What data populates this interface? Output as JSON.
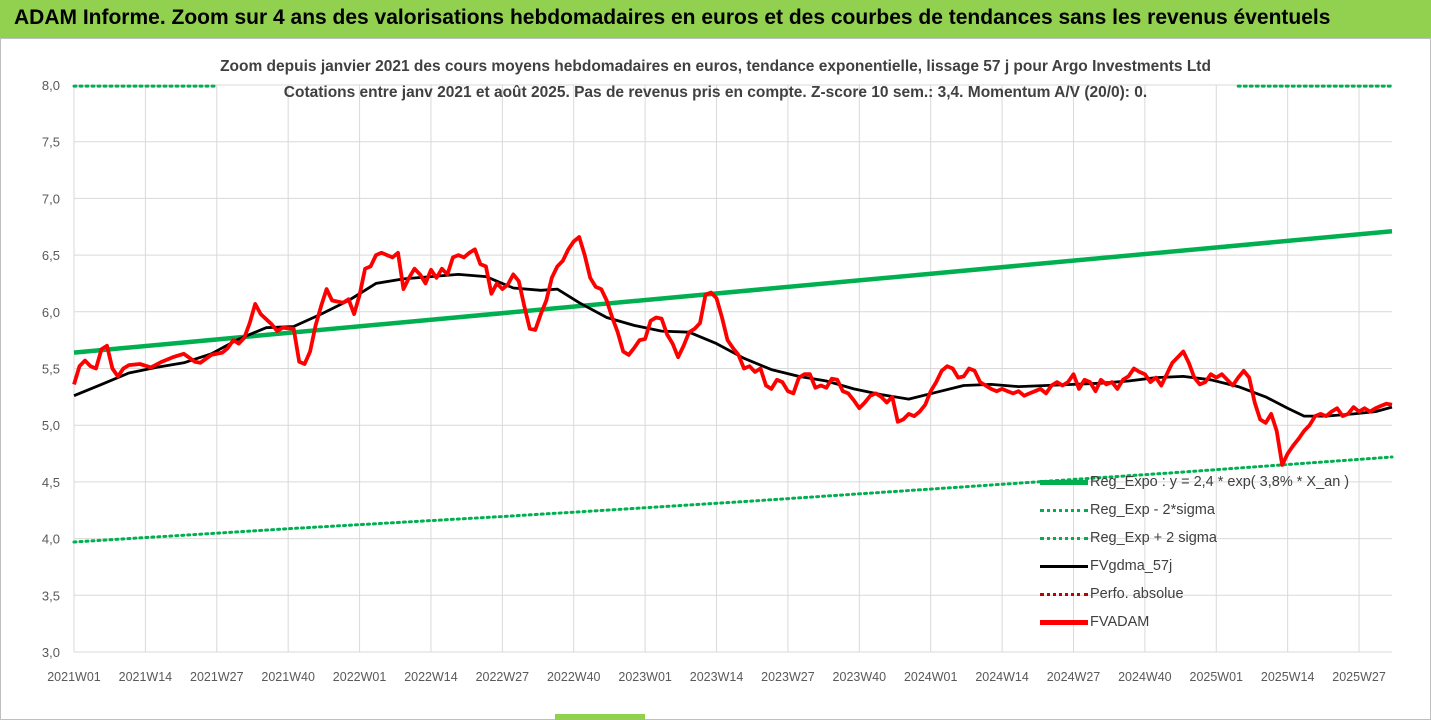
{
  "header": {
    "title": "ADAM Informe. Zoom sur 4 ans des valorisations hebdomadaires en euros et des courbes de tendances sans les revenus éventuels"
  },
  "colors": {
    "banner": "#92d050",
    "trend": "#00b050",
    "price": "#ff0000",
    "smooth": "#000000",
    "perfo": "#c00000",
    "grid": "#d9d9d9",
    "axis_text": "#595959"
  },
  "chart_data": {
    "type": "line",
    "subtitle_line1": "Zoom depuis janvier 2021 des cours moyens hebdomadaires en euros, tendance exponentielle, lissage 57 j pour Argo Investments Ltd",
    "subtitle_line2": "Cotations entre janv 2021 et août 2025.  Pas de revenus pris en compte. Z-score 10 sem.: 3,4. Momentum A/V (20/0): 0.",
    "ylim": [
      3.0,
      8.0
    ],
    "y_ticks": [
      "3,0",
      "3,5",
      "4,0",
      "4,5",
      "5,0",
      "5,5",
      "6,0",
      "6,5",
      "7,0",
      "7,5",
      "8,0"
    ],
    "x_ticks": [
      "2021W01",
      "2021W14",
      "2021W27",
      "2021W40",
      "2022W01",
      "2022W14",
      "2022W27",
      "2022W40",
      "2023W01",
      "2023W14",
      "2023W27",
      "2023W40",
      "2024W01",
      "2024W14",
      "2024W27",
      "2024W40",
      "2025W01",
      "2025W14",
      "2025W27"
    ],
    "x_tick_index": [
      0,
      13,
      26,
      39,
      52,
      65,
      78,
      91,
      104,
      117,
      130,
      143,
      156,
      169,
      182,
      195,
      208,
      221,
      234
    ],
    "x_range": [
      0,
      240
    ],
    "legend_position": "bottom-right",
    "legend": [
      "Reg_Expo : y = 2,4 * exp( 3,8% *  X_an )",
      "Reg_Exp - 2*sigma",
      "Reg_Exp + 2 sigma",
      "FVgdma_57j",
      "Perfo. absolue",
      "FVADAM"
    ],
    "series": [
      {
        "name": "Reg_Expo : y = 2,4 * exp( 3,8% *  X_an )",
        "style": "solid-green",
        "points": [
          [
            0,
            5.64
          ],
          [
            240,
            6.71
          ]
        ]
      },
      {
        "name": "Reg_Exp - 2*sigma",
        "style": "dotted-green",
        "points": [
          [
            0,
            3.97
          ],
          [
            40,
            4.09
          ],
          [
            80,
            4.2
          ],
          [
            120,
            4.32
          ],
          [
            160,
            4.45
          ],
          [
            200,
            4.58
          ],
          [
            240,
            4.72
          ]
        ]
      },
      {
        "name": "Reg_Exp + 2 sigma",
        "style": "dotted-green-segmented",
        "points": [
          [
            0,
            7.99
          ],
          [
            26,
            7.99
          ],
          [
            212,
            7.99
          ],
          [
            240,
            7.99
          ]
        ]
      },
      {
        "name": "FVgdma_57j",
        "style": "solid-black",
        "points": [
          [
            0,
            5.26
          ],
          [
            5,
            5.36
          ],
          [
            10,
            5.46
          ],
          [
            15,
            5.51
          ],
          [
            20,
            5.55
          ],
          [
            25,
            5.63
          ],
          [
            30,
            5.76
          ],
          [
            35,
            5.86
          ],
          [
            40,
            5.87
          ],
          [
            45,
            5.98
          ],
          [
            50,
            6.1
          ],
          [
            55,
            6.25
          ],
          [
            60,
            6.29
          ],
          [
            65,
            6.31
          ],
          [
            70,
            6.33
          ],
          [
            75,
            6.31
          ],
          [
            80,
            6.21
          ],
          [
            85,
            6.19
          ],
          [
            88,
            6.2
          ],
          [
            92,
            6.08
          ],
          [
            97,
            5.95
          ],
          [
            102,
            5.88
          ],
          [
            107,
            5.83
          ],
          [
            112,
            5.82
          ],
          [
            117,
            5.72
          ],
          [
            122,
            5.59
          ],
          [
            127,
            5.49
          ],
          [
            132,
            5.43
          ],
          [
            137,
            5.39
          ],
          [
            142,
            5.32
          ],
          [
            147,
            5.27
          ],
          [
            152,
            5.23
          ],
          [
            157,
            5.29
          ],
          [
            162,
            5.35
          ],
          [
            167,
            5.36
          ],
          [
            172,
            5.34
          ],
          [
            177,
            5.35
          ],
          [
            182,
            5.36
          ],
          [
            187,
            5.37
          ],
          [
            192,
            5.39
          ],
          [
            197,
            5.42
          ],
          [
            202,
            5.43
          ],
          [
            207,
            5.4
          ],
          [
            212,
            5.34
          ],
          [
            217,
            5.25
          ],
          [
            221,
            5.15
          ],
          [
            224,
            5.08
          ],
          [
            228,
            5.08
          ],
          [
            233,
            5.1
          ],
          [
            237,
            5.12
          ],
          [
            240,
            5.16
          ]
        ]
      },
      {
        "name": "Perfo. absolue",
        "style": "dotted-red",
        "points": []
      },
      {
        "name": "FVADAM",
        "style": "thick-red",
        "points": [
          [
            0,
            5.36
          ],
          [
            1,
            5.52
          ],
          [
            2,
            5.57
          ],
          [
            3,
            5.52
          ],
          [
            4,
            5.5
          ],
          [
            5,
            5.67
          ],
          [
            6,
            5.7
          ],
          [
            7,
            5.5
          ],
          [
            8,
            5.43
          ],
          [
            9,
            5.5
          ],
          [
            10,
            5.53
          ],
          [
            12,
            5.54
          ],
          [
            14,
            5.51
          ],
          [
            16,
            5.56
          ],
          [
            18,
            5.6
          ],
          [
            20,
            5.63
          ],
          [
            22,
            5.56
          ],
          [
            23,
            5.55
          ],
          [
            25,
            5.62
          ],
          [
            27,
            5.64
          ],
          [
            28,
            5.68
          ],
          [
            29,
            5.75
          ],
          [
            30,
            5.72
          ],
          [
            31,
            5.77
          ],
          [
            32,
            5.9
          ],
          [
            33,
            6.07
          ],
          [
            34,
            5.98
          ],
          [
            36,
            5.89
          ],
          [
            37,
            5.83
          ],
          [
            38,
            5.86
          ],
          [
            40,
            5.85
          ],
          [
            41,
            5.56
          ],
          [
            42,
            5.54
          ],
          [
            43,
            5.65
          ],
          [
            44,
            5.88
          ],
          [
            45,
            6.05
          ],
          [
            46,
            6.2
          ],
          [
            47,
            6.1
          ],
          [
            49,
            6.08
          ],
          [
            50,
            6.11
          ],
          [
            51,
            5.98
          ],
          [
            52,
            6.15
          ],
          [
            53,
            6.38
          ],
          [
            54,
            6.4
          ],
          [
            55,
            6.5
          ],
          [
            56,
            6.52
          ],
          [
            57,
            6.5
          ],
          [
            58,
            6.48
          ],
          [
            59,
            6.52
          ],
          [
            60,
            6.2
          ],
          [
            61,
            6.3
          ],
          [
            62,
            6.38
          ],
          [
            63,
            6.33
          ],
          [
            64,
            6.25
          ],
          [
            65,
            6.37
          ],
          [
            66,
            6.3
          ],
          [
            67,
            6.38
          ],
          [
            68,
            6.33
          ],
          [
            69,
            6.48
          ],
          [
            70,
            6.5
          ],
          [
            71,
            6.48
          ],
          [
            72,
            6.52
          ],
          [
            73,
            6.55
          ],
          [
            74,
            6.42
          ],
          [
            75,
            6.4
          ],
          [
            76,
            6.16
          ],
          [
            77,
            6.25
          ],
          [
            78,
            6.2
          ],
          [
            79,
            6.24
          ],
          [
            80,
            6.33
          ],
          [
            81,
            6.27
          ],
          [
            82,
            6.05
          ],
          [
            83,
            5.85
          ],
          [
            84,
            5.84
          ],
          [
            85,
            5.98
          ],
          [
            86,
            6.1
          ],
          [
            87,
            6.3
          ],
          [
            88,
            6.4
          ],
          [
            89,
            6.45
          ],
          [
            90,
            6.55
          ],
          [
            91,
            6.62
          ],
          [
            92,
            6.66
          ],
          [
            93,
            6.5
          ],
          [
            94,
            6.3
          ],
          [
            95,
            6.22
          ],
          [
            96,
            6.2
          ],
          [
            97,
            6.1
          ],
          [
            98,
            5.95
          ],
          [
            99,
            5.82
          ],
          [
            100,
            5.65
          ],
          [
            101,
            5.62
          ],
          [
            102,
            5.68
          ],
          [
            103,
            5.75
          ],
          [
            104,
            5.76
          ],
          [
            105,
            5.92
          ],
          [
            106,
            5.95
          ],
          [
            107,
            5.94
          ],
          [
            108,
            5.8
          ],
          [
            109,
            5.72
          ],
          [
            110,
            5.6
          ],
          [
            111,
            5.7
          ],
          [
            112,
            5.82
          ],
          [
            113,
            5.85
          ],
          [
            114,
            5.9
          ],
          [
            115,
            6.15
          ],
          [
            116,
            6.17
          ],
          [
            117,
            6.12
          ],
          [
            118,
            5.95
          ],
          [
            119,
            5.75
          ],
          [
            120,
            5.68
          ],
          [
            121,
            5.62
          ],
          [
            122,
            5.5
          ],
          [
            123,
            5.52
          ],
          [
            124,
            5.47
          ],
          [
            125,
            5.5
          ],
          [
            126,
            5.35
          ],
          [
            127,
            5.32
          ],
          [
            128,
            5.4
          ],
          [
            129,
            5.38
          ],
          [
            130,
            5.3
          ],
          [
            131,
            5.28
          ],
          [
            132,
            5.42
          ],
          [
            133,
            5.45
          ],
          [
            134,
            5.45
          ],
          [
            135,
            5.33
          ],
          [
            136,
            5.35
          ],
          [
            137,
            5.33
          ],
          [
            138,
            5.41
          ],
          [
            139,
            5.4
          ],
          [
            140,
            5.3
          ],
          [
            141,
            5.28
          ],
          [
            142,
            5.22
          ],
          [
            143,
            5.15
          ],
          [
            144,
            5.2
          ],
          [
            145,
            5.26
          ],
          [
            146,
            5.28
          ],
          [
            147,
            5.25
          ],
          [
            148,
            5.2
          ],
          [
            149,
            5.25
          ],
          [
            150,
            5.03
          ],
          [
            151,
            5.05
          ],
          [
            152,
            5.1
          ],
          [
            153,
            5.08
          ],
          [
            154,
            5.12
          ],
          [
            155,
            5.18
          ],
          [
            156,
            5.3
          ],
          [
            157,
            5.38
          ],
          [
            158,
            5.48
          ],
          [
            159,
            5.52
          ],
          [
            160,
            5.5
          ],
          [
            161,
            5.42
          ],
          [
            162,
            5.43
          ],
          [
            163,
            5.5
          ],
          [
            164,
            5.48
          ],
          [
            165,
            5.38
          ],
          [
            166,
            5.35
          ],
          [
            167,
            5.32
          ],
          [
            168,
            5.3
          ],
          [
            169,
            5.32
          ],
          [
            170,
            5.3
          ],
          [
            171,
            5.28
          ],
          [
            172,
            5.3
          ],
          [
            173,
            5.26
          ],
          [
            174,
            5.28
          ],
          [
            175,
            5.3
          ],
          [
            176,
            5.32
          ],
          [
            177,
            5.28
          ],
          [
            178,
            5.35
          ],
          [
            179,
            5.38
          ],
          [
            180,
            5.35
          ],
          [
            181,
            5.38
          ],
          [
            182,
            5.45
          ],
          [
            183,
            5.32
          ],
          [
            184,
            5.4
          ],
          [
            185,
            5.38
          ],
          [
            186,
            5.3
          ],
          [
            187,
            5.4
          ],
          [
            188,
            5.36
          ],
          [
            189,
            5.38
          ],
          [
            190,
            5.32
          ],
          [
            191,
            5.4
          ],
          [
            192,
            5.43
          ],
          [
            193,
            5.5
          ],
          [
            194,
            5.47
          ],
          [
            195,
            5.45
          ],
          [
            196,
            5.38
          ],
          [
            197,
            5.42
          ],
          [
            198,
            5.35
          ],
          [
            199,
            5.45
          ],
          [
            200,
            5.55
          ],
          [
            201,
            5.6
          ],
          [
            202,
            5.65
          ],
          [
            203,
            5.55
          ],
          [
            204,
            5.42
          ],
          [
            205,
            5.36
          ],
          [
            206,
            5.38
          ],
          [
            207,
            5.45
          ],
          [
            208,
            5.42
          ],
          [
            209,
            5.45
          ],
          [
            210,
            5.4
          ],
          [
            211,
            5.35
          ],
          [
            212,
            5.42
          ],
          [
            213,
            5.48
          ],
          [
            214,
            5.42
          ],
          [
            215,
            5.2
          ],
          [
            216,
            5.05
          ],
          [
            217,
            5.02
          ],
          [
            218,
            5.1
          ],
          [
            219,
            4.95
          ],
          [
            220,
            4.65
          ],
          [
            221,
            4.75
          ],
          [
            222,
            4.82
          ],
          [
            223,
            4.88
          ],
          [
            224,
            4.95
          ],
          [
            225,
            5.0
          ],
          [
            226,
            5.08
          ],
          [
            227,
            5.1
          ],
          [
            228,
            5.08
          ],
          [
            229,
            5.12
          ],
          [
            230,
            5.15
          ],
          [
            231,
            5.08
          ],
          [
            232,
            5.1
          ],
          [
            233,
            5.16
          ],
          [
            234,
            5.12
          ],
          [
            235,
            5.15
          ],
          [
            236,
            5.12
          ],
          [
            237,
            5.15
          ],
          [
            238,
            5.17
          ],
          [
            239,
            5.19
          ],
          [
            240,
            5.18
          ]
        ]
      }
    ]
  }
}
